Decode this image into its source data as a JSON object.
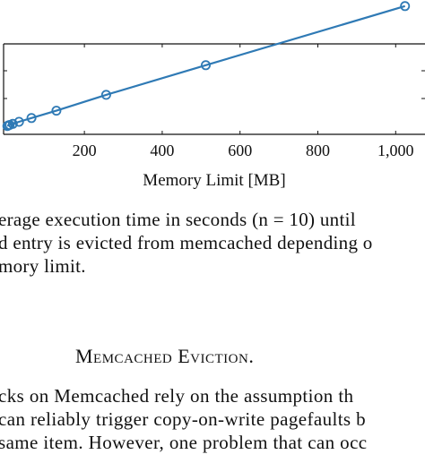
{
  "chart_data": {
    "type": "line",
    "xlabel": "Memory Limit [MB]",
    "x_tick_labels": [
      "200",
      "400",
      "600",
      "800",
      "1,000"
    ],
    "x_ticks": [
      200,
      400,
      600,
      800,
      1000
    ],
    "xlim": [
      -10,
      1080
    ],
    "ylim": [
      0,
      1
    ],
    "series": [
      {
        "color": "#2f7ab5",
        "marker": "circle",
        "x": [
          2,
          4,
          8,
          16,
          32,
          64,
          128,
          256,
          512,
          1024
        ],
        "y": [
          0.045,
          0.05,
          0.055,
          0.065,
          0.085,
          0.12,
          0.19,
          0.34,
          0.62,
          1.18
        ]
      }
    ],
    "grid": false
  },
  "caption": {
    "lines": [
      "erage execution time in seconds (n = 10) until",
      "d entry is evicted from memcached depending o",
      "mory limit."
    ]
  },
  "section": {
    "title": "Memcached Eviction."
  },
  "body": {
    "lines": [
      "cks on Memcached rely on the assumption th",
      "can reliably trigger copy-on-write pagefaults b",
      " same item. However, one problem that can occ"
    ]
  }
}
